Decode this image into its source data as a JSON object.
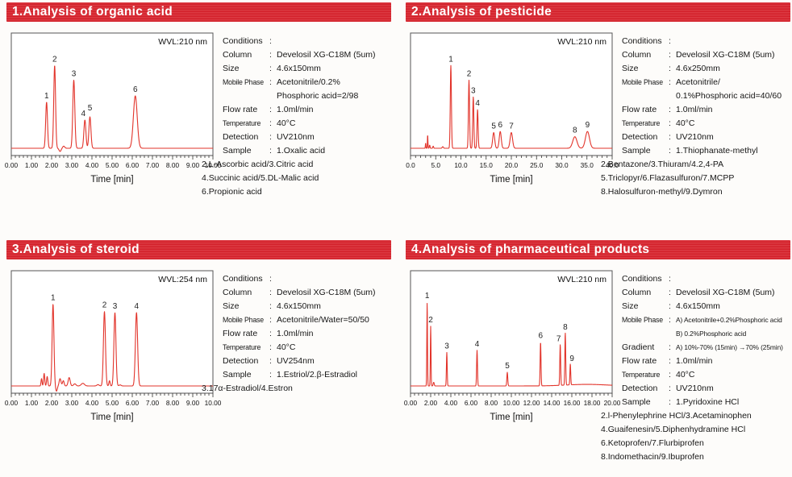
{
  "colors": {
    "title_bar": "#d8232c",
    "trace": "#e2342b",
    "plot_border": "#555555",
    "tick": "#333333",
    "text": "#111111",
    "peak_label": "#222222"
  },
  "panels": [
    {
      "title": "1.Analysis of organic acid",
      "conditions": [
        {
          "label": "Conditions",
          "value": ""
        },
        {
          "label": "Column",
          "value": "Develosil XG-C18M (5um)"
        },
        {
          "label": "Size",
          "value": "4.6x150mm"
        },
        {
          "label": "Mobile Phase",
          "value": "Acetonitrile/0.2%"
        },
        {
          "label": "",
          "value": "Phosphoric acid=2/98"
        },
        {
          "label": "Flow rate",
          "value": "1.0ml/min"
        },
        {
          "label": "Temperature",
          "value": "40°C"
        },
        {
          "label": "Detection",
          "value": "UV210nm"
        },
        {
          "label": "Sample",
          "value": "1.Oxalic acid"
        }
      ],
      "sample_extra": [
        "2.L-Ascorbic acid/3.Citric acid",
        "4.Succinic acid/5.DL-Malic acid",
        "6.Propionic acid"
      ]
    },
    {
      "title": "2.Analysis of pesticide",
      "conditions": [
        {
          "label": "Conditions",
          "value": ""
        },
        {
          "label": "Column",
          "value": "Develosil XG-C18M (5um)"
        },
        {
          "label": "Size",
          "value": "4.6x250mm"
        },
        {
          "label": "Mobile Phase",
          "value": "Acetonitrile/"
        },
        {
          "label": "",
          "value": "0.1%Phosphoric acid=40/60"
        },
        {
          "label": "Flow rate",
          "value": "1.0ml/min"
        },
        {
          "label": "Temperature",
          "value": "40°C"
        },
        {
          "label": "Detection",
          "value": "UV210nm"
        },
        {
          "label": "Sample",
          "value": "1.Thiophanate-methyl"
        }
      ],
      "sample_extra": [
        "2.Bentazone/3.Thiuram/4.2,4-PA",
        "5.Triclopyr/6.Flazasulfuron/7.MCPP",
        "8.Halosulfuron-methyl/9.Dymron"
      ]
    },
    {
      "title": "3.Analysis of steroid",
      "conditions": [
        {
          "label": "Conditions",
          "value": ""
        },
        {
          "label": "Column",
          "value": "Develosil XG-C18M (5um)"
        },
        {
          "label": "Size",
          "value": "4.6x150mm"
        },
        {
          "label": "Mobile Phase",
          "value": "Acetonitrile/Water=50/50"
        },
        {
          "label": "Flow rate",
          "value": "1.0ml/min"
        },
        {
          "label": "Temperature",
          "value": "40°C"
        },
        {
          "label": "Detection",
          "value": "UV254nm"
        },
        {
          "label": "Sample",
          "value": "1.Estriol/2.β-Estradiol"
        }
      ],
      "sample_extra": [
        "3.17α-Estradiol/4.Estron"
      ]
    },
    {
      "title": "4.Analysis of pharmaceutical products",
      "conditions": [
        {
          "label": "Conditions",
          "value": ""
        },
        {
          "label": "Column",
          "value": "Develosil XG-C18M (5um)"
        },
        {
          "label": "Size",
          "value": "4.6x150mm"
        },
        {
          "label": "Mobile Phase",
          "value": "A) Acetonitrile+0.2%Phosphoric acid",
          "small": true
        },
        {
          "label": "",
          "value": "B) 0.2%Phosphoric acid",
          "small": true
        },
        {
          "label": "Gradient",
          "value": "A) 10%-70% (15min) →70% (25min)",
          "small": true
        },
        {
          "label": "Flow rate",
          "value": "1.0ml/min"
        },
        {
          "label": "Temperature",
          "value": "40°C"
        },
        {
          "label": "Detection",
          "value": "UV210nm"
        },
        {
          "label": "Sample",
          "value": "1.Pyridoxine HCl"
        }
      ],
      "sample_extra": [
        "2.l-Phenylephrine HCl/3.Acetaminophen",
        "4.Guaifenesin/5.Diphenhydramine HCl",
        "6.Ketoprofen/7.Flurbiprofen",
        "8.Indomethacin/9.Ibuprofen"
      ]
    }
  ],
  "chart_data": [
    {
      "type": "line",
      "title": "1.Analysis of organic acid",
      "detector_label": "WVL:210 nm",
      "xlabel": "Time [min]",
      "xlim": [
        0,
        10
      ],
      "grid": false,
      "height_scale": "fraction_of_full_scale",
      "xticks": [
        0,
        1,
        2,
        3,
        4,
        5,
        6,
        7,
        8,
        9,
        10
      ],
      "xtick_labels": [
        "0.00",
        "1.00",
        "2.00",
        "3.00",
        "4.00",
        "5.00",
        "6.00",
        "7.00",
        "8.00",
        "9.00",
        "10.00"
      ],
      "peaks": [
        {
          "label": "1",
          "time": 1.75,
          "height": 0.44,
          "width": 0.045
        },
        {
          "label": "2",
          "time": 2.15,
          "height": 0.79,
          "width": 0.045
        },
        {
          "label": "3",
          "time": 3.1,
          "height": 0.65,
          "width": 0.05
        },
        {
          "label": "4",
          "time": 3.65,
          "height": 0.27,
          "width": 0.05,
          "label_dx": -2
        },
        {
          "label": "5",
          "time": 3.9,
          "height": 0.3,
          "width": 0.05,
          "label_dy": -3
        },
        {
          "label": "6",
          "time": 6.15,
          "height": 0.5,
          "width": 0.095
        }
      ],
      "minor_features": [
        {
          "time": 2.42,
          "height": -0.03,
          "width": 0.05
        },
        {
          "time": 2.6,
          "height": 0.02,
          "width": 0.05
        }
      ]
    },
    {
      "type": "line",
      "title": "2.Analysis of pesticide",
      "detector_label": "WVL:210 nm",
      "xlabel": "Time [min]",
      "xlim": [
        0,
        40
      ],
      "grid": false,
      "height_scale": "fraction_of_full_scale",
      "xticks": [
        0,
        5,
        10,
        15,
        20,
        25,
        30,
        35,
        40
      ],
      "xtick_labels": [
        "0.0",
        "5.0",
        "10.0",
        "15.0",
        "20.0",
        "25.0",
        "30.0",
        "35.0",
        "40.0"
      ],
      "peaks": [
        {
          "label": "1",
          "time": 8.0,
          "height": 0.79,
          "width": 0.11
        },
        {
          "label": "2",
          "time": 11.6,
          "height": 0.65,
          "width": 0.11
        },
        {
          "label": "3",
          "time": 12.45,
          "height": 0.49,
          "width": 0.11
        },
        {
          "label": "4",
          "time": 13.3,
          "height": 0.37,
          "width": 0.11
        },
        {
          "label": "5",
          "time": 16.5,
          "height": 0.15,
          "width": 0.2
        },
        {
          "label": "6",
          "time": 17.8,
          "height": 0.16,
          "width": 0.2
        },
        {
          "label": "7",
          "time": 20.0,
          "height": 0.15,
          "width": 0.24
        },
        {
          "label": "8",
          "time": 32.6,
          "height": 0.11,
          "width": 0.42
        },
        {
          "label": "9",
          "time": 35.1,
          "height": 0.16,
          "width": 0.4
        }
      ],
      "minor_features": [
        {
          "time": 3.0,
          "height": 0.05,
          "width": 0.05
        },
        {
          "time": 3.4,
          "height": 0.13,
          "width": 0.05
        },
        {
          "time": 3.8,
          "height": 0.03,
          "width": 0.07
        },
        {
          "time": 4.5,
          "height": 0.02,
          "width": 0.08
        },
        {
          "time": 6.4,
          "height": 0.015,
          "width": 0.12
        }
      ]
    },
    {
      "type": "line",
      "title": "3.Analysis of steroid",
      "detector_label": "WVL:254 nm",
      "xlabel": "Time [min]",
      "xlim": [
        0,
        10
      ],
      "grid": false,
      "height_scale": "fraction_of_full_scale",
      "xticks": [
        0,
        1,
        2,
        3,
        4,
        5,
        6,
        7,
        8,
        9,
        10
      ],
      "xtick_labels": [
        "0.00",
        "1.00",
        "2.00",
        "3.00",
        "4.00",
        "5.00",
        "6.00",
        "7.00",
        "8.00",
        "9.00",
        "10.00"
      ],
      "peaks": [
        {
          "label": "1",
          "time": 2.07,
          "height": 0.78,
          "width": 0.045
        },
        {
          "label": "2",
          "time": 4.62,
          "height": 0.71,
          "width": 0.05
        },
        {
          "label": "3",
          "time": 5.14,
          "height": 0.7,
          "width": 0.05
        },
        {
          "label": "4",
          "time": 6.21,
          "height": 0.7,
          "width": 0.055
        }
      ],
      "minor_features": [
        {
          "time": 1.5,
          "height": 0.07,
          "width": 0.025
        },
        {
          "time": 1.63,
          "height": 0.12,
          "width": 0.028
        },
        {
          "time": 1.78,
          "height": 0.09,
          "width": 0.03
        },
        {
          "time": 2.24,
          "height": -0.05,
          "width": 0.04
        },
        {
          "time": 2.42,
          "height": 0.07,
          "width": 0.045
        },
        {
          "time": 2.58,
          "height": 0.05,
          "width": 0.04
        },
        {
          "time": 2.87,
          "height": 0.08,
          "width": 0.05
        },
        {
          "time": 3.15,
          "height": 0.02,
          "width": 0.06
        },
        {
          "time": 3.55,
          "height": 0.025,
          "width": 0.08
        },
        {
          "time": 4.3,
          "height": 0.012,
          "width": 0.06
        },
        {
          "time": 4.87,
          "height": 0.05,
          "width": 0.03
        },
        {
          "time": 5.4,
          "height": 0.01,
          "width": 0.05
        }
      ]
    },
    {
      "type": "line",
      "title": "4.Analysis of pharmaceutical products",
      "detector_label": "WVL:210 nm",
      "xlabel": "Time [min]",
      "xlim": [
        0,
        20
      ],
      "grid": false,
      "height_scale": "fraction_of_full_scale",
      "xticks": [
        0,
        2,
        4,
        6,
        8,
        10,
        12,
        14,
        16,
        18,
        20
      ],
      "xtick_labels": [
        "0.00",
        "2.00",
        "4.00",
        "6.00",
        "8.00",
        "10.00",
        "12.00",
        "14.00",
        "16.00",
        "18.00",
        "20.00"
      ],
      "peaks": [
        {
          "label": "1",
          "time": 1.65,
          "height": 0.8,
          "width": 0.032
        },
        {
          "label": "2",
          "time": 2.0,
          "height": 0.57,
          "width": 0.032
        },
        {
          "label": "3",
          "time": 3.6,
          "height": 0.32,
          "width": 0.038
        },
        {
          "label": "4",
          "time": 6.6,
          "height": 0.34,
          "width": 0.042
        },
        {
          "label": "5",
          "time": 9.6,
          "height": 0.13,
          "width": 0.045
        },
        {
          "label": "6",
          "time": 12.9,
          "height": 0.42,
          "width": 0.042
        },
        {
          "label": "7",
          "time": 14.85,
          "height": 0.39,
          "width": 0.042,
          "label_dx": -2
        },
        {
          "label": "8",
          "time": 15.35,
          "height": 0.5,
          "width": 0.042
        },
        {
          "label": "9",
          "time": 15.85,
          "height": 0.2,
          "width": 0.04,
          "label_dx": 2
        }
      ],
      "minor_features": [
        {
          "time": 2.3,
          "height": 0.035,
          "width": 0.05
        },
        {
          "time": 17.5,
          "height": 0.015,
          "width": 2.0
        }
      ]
    }
  ]
}
